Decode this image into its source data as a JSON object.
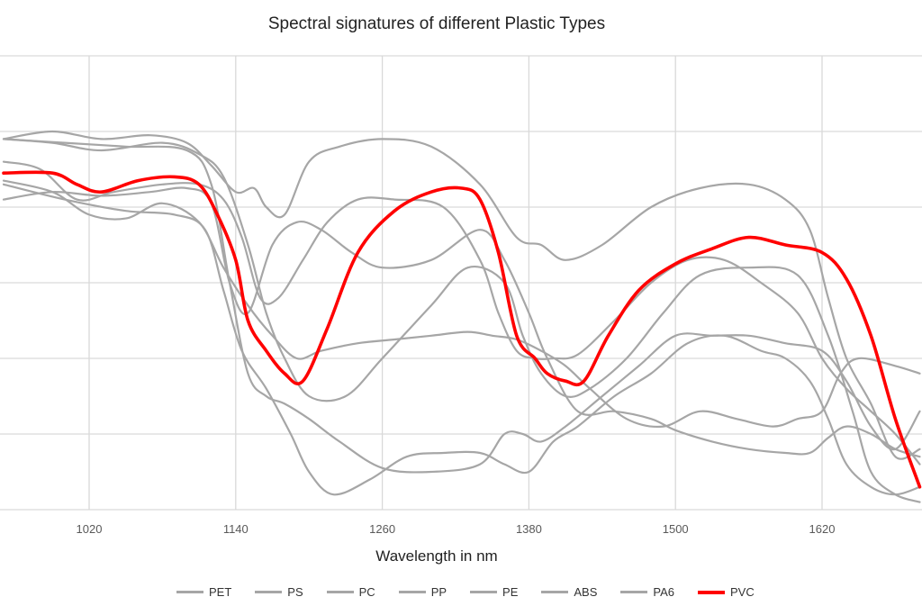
{
  "chart_data": {
    "type": "line",
    "title": "Spectral signatures of  different Plastic Types",
    "xlabel": "Wavelength in nm",
    "ylabel": "",
    "x_ticks": [
      1020,
      1140,
      1260,
      1380,
      1500,
      1620
    ],
    "xlim": [
      950,
      1700
    ],
    "ylim": [
      0,
      6
    ],
    "grid": true,
    "legend_position": "bottom",
    "colors": {
      "default_series": "#a6a6a6",
      "highlight_series": "#ff0000",
      "grid": "#d9d9d9"
    },
    "series": [
      {
        "name": "PET",
        "x": [
          950,
          990,
          1030,
          1070,
          1100,
          1120,
          1135,
          1150,
          1170,
          1190,
          1210,
          1235,
          1260,
          1300,
          1340,
          1360,
          1380,
          1395,
          1420,
          1450,
          1480,
          1500,
          1530,
          1560,
          1590,
          1610,
          1625,
          1640,
          1660,
          1680,
          1700
        ],
        "y": [
          4.1,
          4.2,
          4.15,
          4.2,
          4.25,
          4.05,
          3.0,
          2.6,
          3.5,
          3.8,
          3.7,
          3.4,
          3.2,
          3.3,
          3.7,
          3.3,
          2.6,
          2.0,
          1.3,
          1.3,
          1.2,
          1.05,
          0.9,
          0.8,
          0.75,
          0.75,
          0.95,
          1.1,
          1.0,
          0.8,
          0.7
        ]
      },
      {
        "name": "PS",
        "x": [
          950,
          1000,
          1050,
          1100,
          1120,
          1135,
          1150,
          1165,
          1180,
          1200,
          1225,
          1260,
          1300,
          1340,
          1360,
          1375,
          1390,
          1410,
          1440,
          1470,
          1500,
          1530,
          1560,
          1590,
          1620,
          1640,
          1660,
          1680,
          1700
        ],
        "y": [
          4.9,
          4.85,
          4.8,
          4.75,
          4.3,
          3.0,
          1.8,
          1.5,
          1.4,
          1.2,
          0.9,
          0.55,
          0.5,
          0.6,
          1.0,
          1.0,
          0.9,
          1.1,
          1.5,
          1.9,
          2.3,
          2.3,
          2.3,
          2.2,
          2.1,
          1.7,
          1.1,
          0.8,
          1.3
        ]
      },
      {
        "name": "PC",
        "x": [
          950,
          1000,
          1050,
          1090,
          1115,
          1130,
          1145,
          1165,
          1185,
          1200,
          1220,
          1250,
          1280,
          1310,
          1340,
          1360,
          1380,
          1400,
          1420,
          1450,
          1480,
          1510,
          1540,
          1570,
          1590,
          1610,
          1625,
          1640,
          1660,
          1680,
          1700
        ],
        "y": [
          4.3,
          4.1,
          3.95,
          3.9,
          3.7,
          2.9,
          2.1,
          1.6,
          1.0,
          0.5,
          0.2,
          0.4,
          0.7,
          0.75,
          0.75,
          0.6,
          0.5,
          0.9,
          1.1,
          1.5,
          1.8,
          2.2,
          2.3,
          2.1,
          2.0,
          1.7,
          1.2,
          0.6,
          0.3,
          0.2,
          0.3
        ]
      },
      {
        "name": "PP",
        "x": [
          950,
          990,
          1020,
          1050,
          1080,
          1110,
          1130,
          1150,
          1170,
          1190,
          1210,
          1240,
          1270,
          1300,
          1330,
          1350,
          1370,
          1390,
          1410,
          1430,
          1460,
          1490,
          1520,
          1550,
          1580,
          1600,
          1620,
          1635,
          1650,
          1680,
          1700
        ],
        "y": [
          4.35,
          4.2,
          3.9,
          3.85,
          4.05,
          3.8,
          3.2,
          2.7,
          2.3,
          2.0,
          2.1,
          2.2,
          2.25,
          2.3,
          2.35,
          2.3,
          2.25,
          2.1,
          1.9,
          1.6,
          1.2,
          1.1,
          1.3,
          1.2,
          1.1,
          1.2,
          1.3,
          1.8,
          2.0,
          1.9,
          1.8
        ]
      },
      {
        "name": "PE",
        "x": [
          950,
          990,
          1030,
          1080,
          1110,
          1130,
          1150,
          1165,
          1180,
          1200,
          1230,
          1260,
          1300,
          1330,
          1360,
          1375,
          1390,
          1410,
          1430,
          1460,
          1490,
          1520,
          1560,
          1600,
          1625,
          1645,
          1660,
          1680,
          1700
        ],
        "y": [
          4.9,
          4.85,
          4.75,
          4.85,
          4.7,
          4.4,
          3.5,
          2.6,
          2.0,
          1.5,
          1.5,
          2.0,
          2.7,
          3.2,
          3.0,
          2.3,
          1.8,
          1.5,
          1.6,
          2.0,
          2.6,
          3.1,
          3.2,
          3.1,
          2.3,
          1.3,
          0.5,
          0.2,
          0.1
        ]
      },
      {
        "name": "ABS",
        "x": [
          950,
          980,
          1010,
          1040,
          1080,
          1110,
          1130,
          1145,
          1160,
          1175,
          1195,
          1215,
          1240,
          1270,
          1310,
          1340,
          1355,
          1370,
          1385,
          1400,
          1420,
          1450,
          1480,
          1510,
          1540,
          1570,
          1600,
          1620,
          1640,
          1660,
          1680,
          1700
        ],
        "y": [
          4.6,
          4.5,
          4.1,
          4.2,
          4.3,
          4.3,
          4.1,
          3.6,
          2.8,
          2.8,
          3.3,
          3.8,
          4.1,
          4.1,
          4.0,
          3.3,
          2.6,
          2.1,
          2.0,
          2.0,
          2.05,
          2.5,
          3.0,
          3.3,
          3.3,
          3.0,
          2.6,
          2.0,
          1.6,
          1.3,
          1.0,
          0.6
        ]
      },
      {
        "name": "PA6",
        "x": [
          950,
          990,
          1030,
          1070,
          1100,
          1120,
          1140,
          1155,
          1165,
          1180,
          1200,
          1225,
          1260,
          1300,
          1340,
          1370,
          1390,
          1410,
          1440,
          1480,
          1520,
          1560,
          1590,
          1610,
          1625,
          1640,
          1660,
          1680,
          1700
        ],
        "y": [
          4.9,
          5.0,
          4.9,
          4.95,
          4.85,
          4.55,
          4.2,
          4.25,
          4.0,
          3.9,
          4.6,
          4.8,
          4.9,
          4.8,
          4.3,
          3.6,
          3.5,
          3.3,
          3.5,
          4.0,
          4.25,
          4.3,
          4.1,
          3.7,
          2.8,
          2.0,
          1.4,
          0.7,
          0.8
        ]
      },
      {
        "name": "PVC",
        "x": [
          950,
          990,
          1010,
          1030,
          1060,
          1090,
          1110,
          1125,
          1140,
          1150,
          1165,
          1180,
          1195,
          1215,
          1240,
          1270,
          1300,
          1325,
          1340,
          1355,
          1370,
          1385,
          1395,
          1410,
          1425,
          1445,
          1470,
          1500,
          1530,
          1560,
          1590,
          1620,
          1640,
          1660,
          1680,
          1700
        ],
        "y": [
          4.45,
          4.45,
          4.3,
          4.2,
          4.35,
          4.4,
          4.3,
          3.9,
          3.3,
          2.5,
          2.1,
          1.8,
          1.7,
          2.4,
          3.4,
          3.95,
          4.2,
          4.25,
          4.1,
          3.4,
          2.3,
          2.0,
          1.8,
          1.7,
          1.7,
          2.3,
          2.9,
          3.25,
          3.45,
          3.6,
          3.5,
          3.4,
          3.05,
          2.3,
          1.2,
          0.3
        ]
      }
    ]
  }
}
